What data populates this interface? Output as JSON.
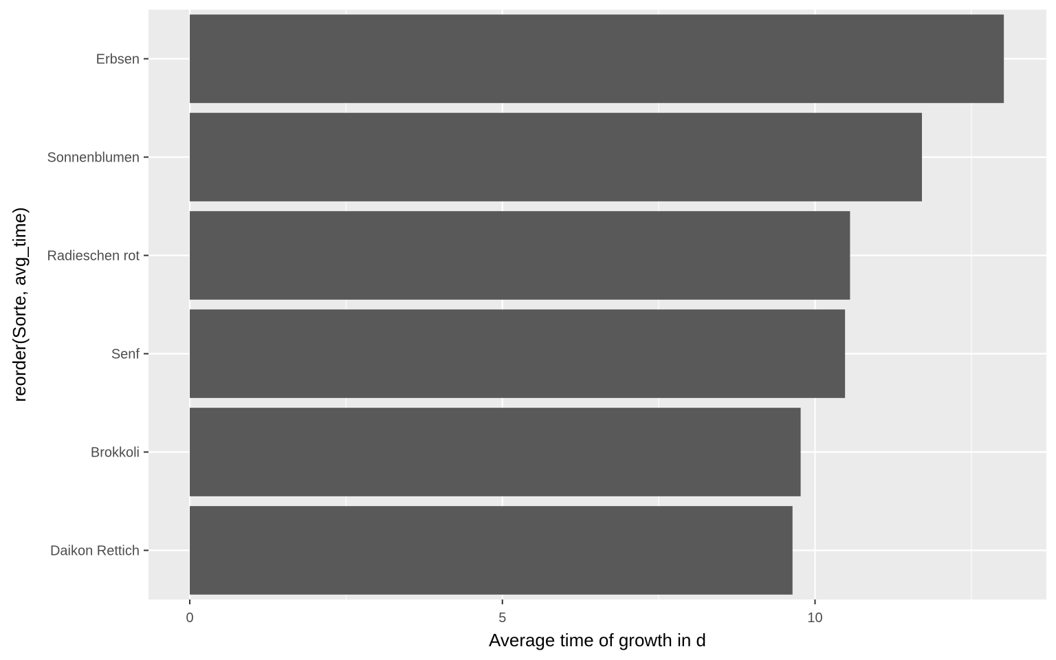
{
  "chart_data": {
    "type": "bar",
    "orientation": "horizontal",
    "categories": [
      "Erbsen",
      "Sonnenblumen",
      "Radieschen rot",
      "Senf",
      "Brokkoli",
      "Daikon Rettich"
    ],
    "values": [
      13.02,
      11.71,
      10.56,
      10.48,
      9.77,
      9.64
    ],
    "xlabel": "Average time of growth in d",
    "ylabel": "reorder(Sorte, avg_time)",
    "xlim": [
      -0.66,
      13.7
    ],
    "xticks": [
      0,
      5,
      10
    ],
    "xtick_labels": [
      "0",
      "5",
      "10"
    ],
    "grid": true,
    "colors": {
      "panel_background": "#ebebeb",
      "grid_line": "#ffffff",
      "bar_fill": "#595959",
      "tick_label": "#4d4d4d",
      "tick_mark": "#333333"
    }
  }
}
